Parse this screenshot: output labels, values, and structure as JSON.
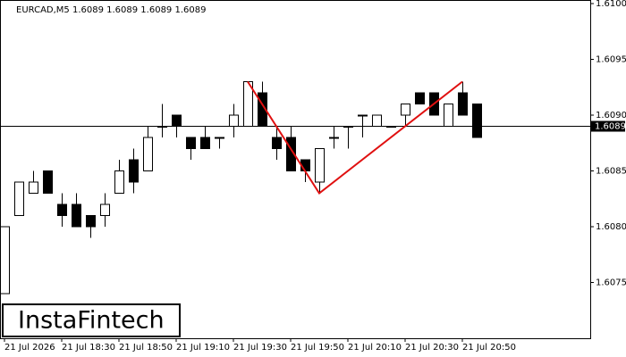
{
  "chart_data": {
    "type": "candlestick",
    "title": "EURCAD,M5  1.6089 1.6089 1.6089 1.6089",
    "categories": [
      "21 Jul 2026",
      null,
      null,
      null,
      "21 Jul 18:30",
      null,
      null,
      null,
      "21 Jul 18:50",
      null,
      null,
      null,
      "21 Jul 19:10",
      null,
      null,
      null,
      "21 Jul 19:30",
      null,
      null,
      null,
      "21 Jul 19:50",
      null,
      null,
      null,
      "21 Jul 20:10",
      null,
      null,
      null,
      "21 Jul 20:30",
      null,
      null,
      null,
      "21 Jul 20:50",
      null
    ],
    "open": [
      1.6074,
      1.6081,
      1.6083,
      1.6085,
      1.6082,
      1.6082,
      1.6081,
      1.6081,
      1.6083,
      1.6086,
      1.6085,
      1.6089,
      1.609,
      1.6088,
      1.6088,
      1.6088,
      1.6089,
      1.6089,
      1.6092,
      1.6088,
      1.6088,
      1.6086,
      1.6084,
      1.6088,
      1.6089,
      1.609,
      1.6089,
      1.6089,
      1.609,
      1.6092,
      1.6092,
      1.6089,
      1.6092,
      1.6091
    ],
    "high": [
      1.608,
      1.6084,
      1.6085,
      1.6085,
      1.6083,
      1.6083,
      1.6081,
      1.6083,
      1.6086,
      1.6087,
      1.6089,
      1.6091,
      1.609,
      1.6088,
      1.6089,
      1.6088,
      1.6091,
      1.6093,
      1.6093,
      1.6089,
      1.6089,
      1.6086,
      1.6087,
      1.6089,
      1.6089,
      1.609,
      1.609,
      1.6089,
      1.6091,
      1.6092,
      1.6092,
      1.6091,
      1.6093,
      1.6091
    ],
    "low": [
      1.6074,
      1.6081,
      1.6083,
      1.6083,
      1.608,
      1.608,
      1.6079,
      1.608,
      1.6083,
      1.6083,
      1.6085,
      1.6088,
      1.6088,
      1.6086,
      1.6087,
      1.6087,
      1.6088,
      1.6089,
      1.6089,
      1.6086,
      1.6085,
      1.6084,
      1.6083,
      1.6087,
      1.6087,
      1.6088,
      1.6089,
      1.6089,
      1.6089,
      1.6091,
      1.609,
      1.6089,
      1.609,
      1.6088
    ],
    "close": [
      1.608,
      1.6084,
      1.6084,
      1.6083,
      1.6081,
      1.608,
      1.608,
      1.6082,
      1.6085,
      1.6084,
      1.6088,
      1.6089,
      1.6089,
      1.6087,
      1.6087,
      1.6088,
      1.609,
      1.6093,
      1.6089,
      1.6087,
      1.6085,
      1.6085,
      1.6087,
      1.6088,
      1.6089,
      1.609,
      1.609,
      1.6089,
      1.6091,
      1.6091,
      1.609,
      1.6091,
      1.609,
      1.6088
    ],
    "up_color": "#ffffff",
    "down_color": "#000000",
    "pattern_line": {
      "color": "#e01010",
      "values": [
        null,
        null,
        null,
        null,
        null,
        null,
        null,
        null,
        null,
        null,
        null,
        null,
        null,
        null,
        null,
        null,
        null,
        1.6093,
        null,
        null,
        null,
        null,
        1.6083,
        null,
        null,
        null,
        null,
        null,
        null,
        null,
        null,
        null,
        1.6093,
        null
      ]
    },
    "current_price": 1.6089,
    "ylim": [
      1.607,
      1.61
    ],
    "yticks": [
      1.6075,
      {
        "value": 1.608,
        "label": "1.6080"
      },
      1.6085,
      {
        "value": 1.609,
        "label": "1.6090"
      },
      1.6095,
      {
        "value": 1.61,
        "label": "1.6100"
      }
    ],
    "logo": "InstaFintech"
  }
}
